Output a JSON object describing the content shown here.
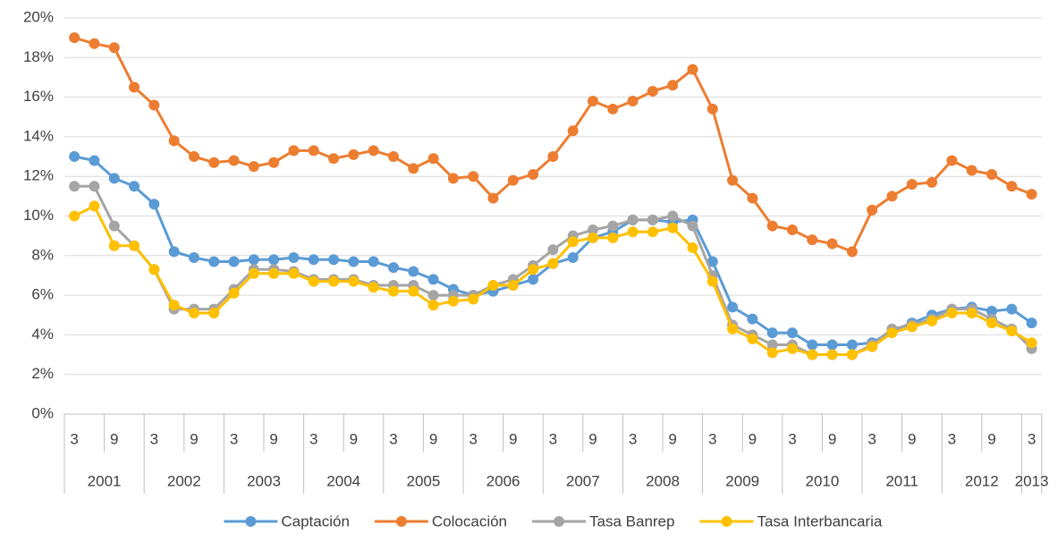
{
  "chart_data": {
    "type": "line",
    "categories": [
      "3",
      null,
      "9",
      null,
      "3",
      null,
      "9",
      null,
      "3",
      null,
      "9",
      null,
      "3",
      null,
      "9",
      null,
      "3",
      null,
      "9",
      null,
      "3",
      null,
      "9",
      null,
      "3",
      null,
      "9",
      null,
      "3",
      null,
      "9",
      null,
      "3",
      null,
      "9",
      null,
      "3",
      null,
      "9",
      null,
      "3",
      null,
      "9",
      null,
      "3",
      null,
      "9",
      null,
      "3"
    ],
    "year_categories": [
      "2001",
      "2002",
      "2003",
      "2004",
      "2005",
      "2006",
      "2007",
      "2008",
      "2009",
      "2010",
      "2011",
      "2012",
      "2013"
    ],
    "series": [
      {
        "name": "Captación",
        "color": "#5b9bd5",
        "values": [
          13.0,
          12.8,
          11.9,
          11.5,
          10.6,
          8.2,
          7.9,
          7.7,
          7.7,
          7.8,
          7.8,
          7.9,
          7.8,
          7.8,
          7.7,
          7.7,
          7.4,
          7.2,
          6.8,
          6.3,
          6.0,
          6.2,
          6.5,
          6.8,
          7.6,
          7.9,
          8.9,
          9.2,
          9.8,
          9.8,
          9.7,
          9.8,
          7.7,
          5.4,
          4.8,
          4.1,
          4.1,
          3.5,
          3.5,
          3.5,
          3.6,
          4.2,
          4.6,
          5.0,
          5.3,
          5.4,
          5.2,
          5.3,
          4.6
        ]
      },
      {
        "name": "Colocación",
        "color": "#ed7d31",
        "values": [
          19.0,
          18.7,
          18.5,
          16.5,
          15.6,
          13.8,
          13.0,
          12.7,
          12.8,
          12.5,
          12.7,
          13.3,
          13.3,
          12.9,
          13.1,
          13.3,
          13.0,
          12.4,
          12.9,
          11.9,
          12.0,
          10.9,
          11.8,
          12.1,
          13.0,
          14.3,
          15.8,
          15.4,
          15.8,
          16.3,
          16.6,
          17.4,
          15.4,
          11.8,
          10.9,
          9.5,
          9.3,
          8.8,
          8.6,
          8.2,
          10.3,
          11.0,
          11.6,
          11.7,
          12.8,
          12.3,
          12.1,
          11.5,
          11.1
        ]
      },
      {
        "name": "Tasa Banrep",
        "color": "#a5a5a5",
        "values": [
          11.5,
          11.5,
          9.5,
          8.5,
          7.3,
          5.3,
          5.3,
          5.3,
          6.3,
          7.3,
          7.3,
          7.2,
          6.8,
          6.8,
          6.8,
          6.5,
          6.5,
          6.5,
          6.0,
          6.0,
          6.0,
          6.5,
          6.8,
          7.5,
          8.3,
          9.0,
          9.3,
          9.5,
          9.8,
          9.8,
          10.0,
          9.5,
          7.0,
          4.5,
          4.0,
          3.5,
          3.5,
          3.0,
          3.0,
          3.0,
          3.5,
          4.3,
          4.5,
          4.8,
          5.3,
          5.3,
          4.8,
          4.3,
          3.3
        ]
      },
      {
        "name": "Tasa Interbancaria",
        "color": "#ffc000",
        "values": [
          10.0,
          10.5,
          8.5,
          8.5,
          7.3,
          5.5,
          5.1,
          5.1,
          6.1,
          7.1,
          7.1,
          7.1,
          6.7,
          6.7,
          6.7,
          6.4,
          6.2,
          6.2,
          5.5,
          5.7,
          5.8,
          6.5,
          6.5,
          7.3,
          7.6,
          8.7,
          8.9,
          8.9,
          9.2,
          9.2,
          9.4,
          8.4,
          6.7,
          4.3,
          3.8,
          3.1,
          3.3,
          3.0,
          3.0,
          3.0,
          3.4,
          4.1,
          4.4,
          4.7,
          5.1,
          5.1,
          4.6,
          4.2,
          3.6
        ]
      }
    ],
    "ylim": [
      0,
      20
    ],
    "yticks": [
      {
        "value": 0,
        "label": "0%"
      },
      {
        "value": 2,
        "label": "2%"
      },
      {
        "value": 4,
        "label": "4%"
      },
      {
        "value": 6,
        "label": "6%"
      },
      {
        "value": 8,
        "label": "8%"
      },
      {
        "value": 10,
        "label": "10%"
      },
      {
        "value": 12,
        "label": "12%"
      },
      {
        "value": 14,
        "label": "14%"
      },
      {
        "value": 16,
        "label": "16%"
      },
      {
        "value": 18,
        "label": "18%"
      },
      {
        "value": 20,
        "label": "20%"
      }
    ],
    "grid": true,
    "legend": "bottom"
  }
}
